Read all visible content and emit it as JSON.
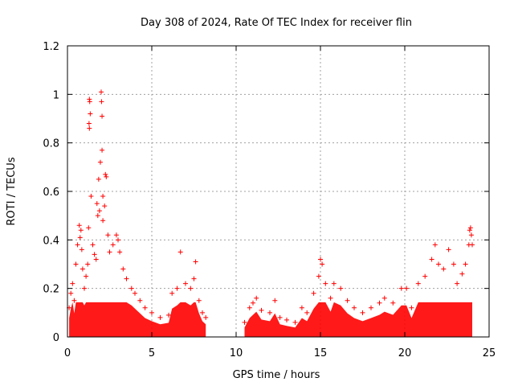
{
  "chart_data": {
    "type": "scatter",
    "title": "Day 308 of 2024, Rate Of TEC Index for receiver flin",
    "xlabel": "GPS time / hours",
    "ylabel": "ROTI / TECUs",
    "xlim": [
      0,
      25
    ],
    "ylim": [
      0,
      1.2
    ],
    "xticks": [
      0,
      5,
      10,
      15,
      20,
      25
    ],
    "xtick_labels": [
      "0",
      "5",
      "10",
      "15",
      "20",
      "25"
    ],
    "yticks": [
      0,
      0.2,
      0.4,
      0.6,
      0.8,
      1.0,
      1.2
    ],
    "ytick_labels": [
      "0",
      "0.2",
      "0.4",
      "0.6",
      "0.8",
      "1",
      "1.2"
    ],
    "grid": true,
    "marker": "+",
    "color": "#ff0000",
    "series": [
      {
        "name": "ROTI",
        "points": [
          [
            0.1,
            0.12
          ],
          [
            0.2,
            0.18
          ],
          [
            0.3,
            0.22
          ],
          [
            0.4,
            0.15
          ],
          [
            0.5,
            0.3
          ],
          [
            0.6,
            0.38
          ],
          [
            0.7,
            0.46
          ],
          [
            0.75,
            0.41
          ],
          [
            0.8,
            0.44
          ],
          [
            0.85,
            0.36
          ],
          [
            0.9,
            0.28
          ],
          [
            1.0,
            0.2
          ],
          [
            1.1,
            0.25
          ],
          [
            1.2,
            0.3
          ],
          [
            1.25,
            0.45
          ],
          [
            1.3,
            0.98
          ],
          [
            1.32,
            0.97
          ],
          [
            1.35,
            0.92
          ],
          [
            1.3,
            0.86
          ],
          [
            1.28,
            0.88
          ],
          [
            1.4,
            0.58
          ],
          [
            1.5,
            0.38
          ],
          [
            1.6,
            0.34
          ],
          [
            1.7,
            0.32
          ],
          [
            1.75,
            0.55
          ],
          [
            1.8,
            0.5
          ],
          [
            1.85,
            0.65
          ],
          [
            1.9,
            0.52
          ],
          [
            1.95,
            0.72
          ],
          [
            2.0,
            1.01
          ],
          [
            2.02,
            0.97
          ],
          [
            2.05,
            0.91
          ],
          [
            2.05,
            0.77
          ],
          [
            2.1,
            0.58
          ],
          [
            2.1,
            0.48
          ],
          [
            2.2,
            0.54
          ],
          [
            2.25,
            0.67
          ],
          [
            2.3,
            0.66
          ],
          [
            2.4,
            0.42
          ],
          [
            2.5,
            0.35
          ],
          [
            2.7,
            0.38
          ],
          [
            2.9,
            0.42
          ],
          [
            3.0,
            0.4
          ],
          [
            3.1,
            0.35
          ],
          [
            3.3,
            0.28
          ],
          [
            3.5,
            0.24
          ],
          [
            3.8,
            0.2
          ],
          [
            4.0,
            0.18
          ],
          [
            4.3,
            0.15
          ],
          [
            4.6,
            0.12
          ],
          [
            5.0,
            0.1
          ],
          [
            5.5,
            0.08
          ],
          [
            6.0,
            0.09
          ],
          [
            6.2,
            0.18
          ],
          [
            6.5,
            0.2
          ],
          [
            6.7,
            0.35
          ],
          [
            7.0,
            0.22
          ],
          [
            7.3,
            0.2
          ],
          [
            7.5,
            0.24
          ],
          [
            7.6,
            0.31
          ],
          [
            7.8,
            0.15
          ],
          [
            8.0,
            0.1
          ],
          [
            8.2,
            0.08
          ],
          [
            10.5,
            0.06
          ],
          [
            10.8,
            0.12
          ],
          [
            11.0,
            0.14
          ],
          [
            11.2,
            0.16
          ],
          [
            11.5,
            0.11
          ],
          [
            12.0,
            0.1
          ],
          [
            12.3,
            0.15
          ],
          [
            12.6,
            0.08
          ],
          [
            13.0,
            0.07
          ],
          [
            13.5,
            0.06
          ],
          [
            13.9,
            0.12
          ],
          [
            14.2,
            0.1
          ],
          [
            14.6,
            0.18
          ],
          [
            14.9,
            0.25
          ],
          [
            15.0,
            0.32
          ],
          [
            15.1,
            0.3
          ],
          [
            15.3,
            0.22
          ],
          [
            15.6,
            0.16
          ],
          [
            15.8,
            0.22
          ],
          [
            16.2,
            0.2
          ],
          [
            16.6,
            0.15
          ],
          [
            17.0,
            0.12
          ],
          [
            17.5,
            0.1
          ],
          [
            18.0,
            0.12
          ],
          [
            18.5,
            0.14
          ],
          [
            18.8,
            0.16
          ],
          [
            19.3,
            0.14
          ],
          [
            19.8,
            0.2
          ],
          [
            20.1,
            0.2
          ],
          [
            20.4,
            0.12
          ],
          [
            20.8,
            0.22
          ],
          [
            21.2,
            0.25
          ],
          [
            21.6,
            0.32
          ],
          [
            21.8,
            0.38
          ],
          [
            22.0,
            0.3
          ],
          [
            22.3,
            0.28
          ],
          [
            22.6,
            0.36
          ],
          [
            22.9,
            0.3
          ],
          [
            23.1,
            0.22
          ],
          [
            23.4,
            0.26
          ],
          [
            23.6,
            0.3
          ],
          [
            23.8,
            0.38
          ],
          [
            23.85,
            0.44
          ],
          [
            23.9,
            0.45
          ],
          [
            23.95,
            0.42
          ],
          [
            24.0,
            0.38
          ]
        ]
      }
    ]
  }
}
